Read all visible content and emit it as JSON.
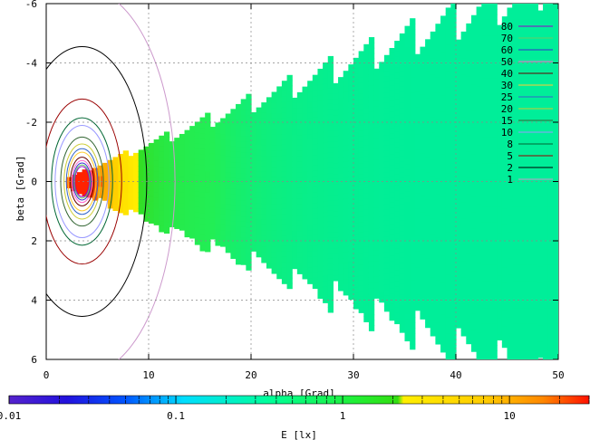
{
  "chart_data": {
    "type": "heatmap",
    "title": "",
    "xlabel": "alpha [Grad]",
    "ylabel": "beta [Grad]",
    "xlim": [
      0,
      50
    ],
    "ylim": [
      -6,
      6
    ],
    "y_axis_inverted": true,
    "x_ticks": [
      "0",
      "10",
      "20",
      "30",
      "40",
      "50"
    ],
    "y_ticks": [
      "-6",
      "-4",
      "-2",
      "0",
      "2",
      "4",
      "6"
    ],
    "grid": true,
    "legend_placement": "top-right",
    "colorbar": {
      "label": "E [lx]",
      "scale": "log",
      "range": [
        0.01,
        30
      ],
      "ticks": [
        "0.01",
        "0.1",
        "1",
        "10"
      ]
    },
    "contour_levels": [
      {
        "level": "80",
        "color": "#9900cc"
      },
      {
        "level": "70",
        "color": "#66cc66"
      },
      {
        "level": "60",
        "color": "#3333cc"
      },
      {
        "level": "50",
        "color": "#ff66cc"
      },
      {
        "level": "40",
        "color": "#660000"
      },
      {
        "level": "30",
        "color": "#ffcc33"
      },
      {
        "level": "25",
        "color": "#3366cc"
      },
      {
        "level": "20",
        "color": "#cccc33"
      },
      {
        "level": "15",
        "color": "#336633"
      },
      {
        "level": "10",
        "color": "#9999ff"
      },
      {
        "level": "8",
        "color": "#006633"
      },
      {
        "level": "5",
        "color": "#990000"
      },
      {
        "level": "2",
        "color": "#000000"
      },
      {
        "level": "1",
        "color": "#cc99cc"
      }
    ],
    "field_region": {
      "alpha_min": 2,
      "alpha_max": 50,
      "beta_spread_per_alpha": 0.12
    },
    "peak": {
      "alpha": 3.5,
      "beta": 0.0,
      "value": 80
    },
    "band_colors": {
      "green": "#22ee55",
      "yellow": "#ffee00",
      "orange": "#ff9900",
      "red": "#ff2200"
    }
  }
}
